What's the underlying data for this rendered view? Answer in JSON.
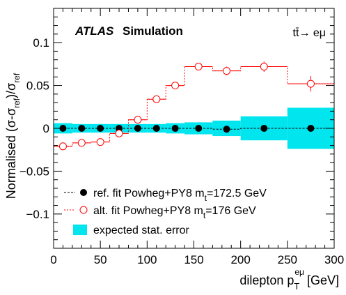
{
  "chart_data": {
    "type": "scatter",
    "experiment_label": "ATLAS",
    "experiment_sublabel": "Simulation",
    "process_label": "tt̄→ eμ",
    "xlabel_main": "dilepton p",
    "xlabel_sub": "T",
    "xlabel_sup": "eμ",
    "xlabel_unit": "[GeV]",
    "ylabel": "Normalised (σ-σ",
    "ylabel_sub1": "ref",
    "ylabel_mid": ")/σ",
    "ylabel_sub2": "ref",
    "xlim": [
      0,
      300
    ],
    "ylim": [
      -0.14,
      0.14
    ],
    "x_ticks": [
      {
        "value": 0,
        "label": "0"
      },
      {
        "value": 50,
        "label": "50"
      },
      {
        "value": 100,
        "label": "100"
      },
      {
        "value": 150,
        "label": "150"
      },
      {
        "value": 200,
        "label": "200"
      },
      {
        "value": 250,
        "label": "250"
      },
      {
        "value": 300,
        "label": "300"
      }
    ],
    "y_ticks": [
      {
        "value": 0.1,
        "label": "0.1"
      },
      {
        "value": 0.05,
        "label": "0.05"
      },
      {
        "value": 0,
        "label": "0"
      },
      {
        "value": -0.05,
        "label": "−0.05"
      },
      {
        "value": -0.1,
        "label": "−0.1"
      }
    ],
    "bin_edges": [
      0,
      20,
      40,
      60,
      80,
      100,
      120,
      140,
      170,
      200,
      250,
      300
    ],
    "series": [
      {
        "key": "ref",
        "name": "ref. fit Powheg+PY8 m",
        "name_sub": "t",
        "name_rest": "=172.5 GeV",
        "color": "#000000",
        "marker": "filled",
        "values": [
          0.0,
          0.0,
          0.0,
          0.0,
          0.0,
          0.0,
          0.0,
          0.0,
          -0.001,
          0.0,
          0.0
        ],
        "errors": [
          0.0,
          0.0,
          0.0,
          0.0,
          0.0,
          0.0,
          0.0,
          0.0,
          0.0,
          0.0,
          0.0
        ]
      },
      {
        "key": "alt",
        "name": "alt. fit Powheg+PY8 m",
        "name_sub": "t",
        "name_rest": "=176 GeV",
        "color": "#ff0000",
        "marker": "open",
        "values": [
          -0.021,
          -0.017,
          -0.016,
          -0.006,
          0.01,
          0.034,
          0.05,
          0.072,
          0.067,
          0.072,
          0.052
        ],
        "errors": [
          0.002,
          0.002,
          0.002,
          0.002,
          0.003,
          0.003,
          0.004,
          0.004,
          0.005,
          0.006,
          0.009
        ]
      }
    ],
    "stat_error_band": {
      "name": "expected stat. error",
      "color": "#00e5ee",
      "half_width": [
        0.006,
        0.005,
        0.005,
        0.005,
        0.005,
        0.005,
        0.006,
        0.007,
        0.009,
        0.014,
        0.024
      ]
    },
    "legend_position": "bottom-left",
    "grid": false
  }
}
